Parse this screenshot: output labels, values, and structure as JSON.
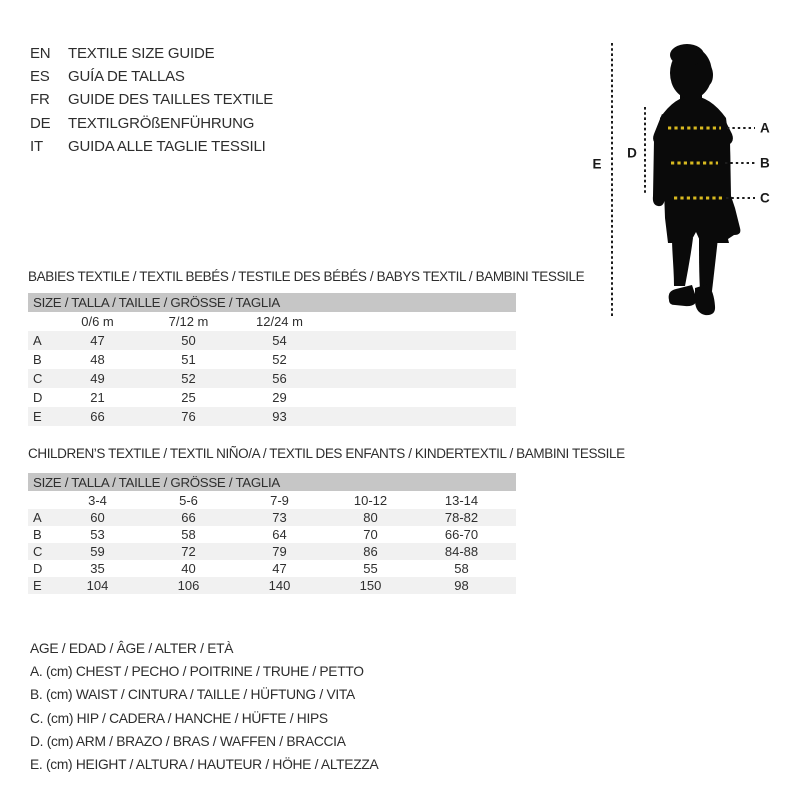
{
  "colors": {
    "accent_yellow": "#d8b920",
    "measure_line_dark": "#1c1c1c",
    "header_bar_gray": "#c6c6c6",
    "row_stripe_gray": "#f1f1f1",
    "silhouette_black": "#0a0a0a",
    "text": "#2d2d2d"
  },
  "header": {
    "languages": [
      {
        "code": "EN",
        "title": "TEXTILE SIZE GUIDE"
      },
      {
        "code": "ES",
        "title": "GUÍA DE TALLAS"
      },
      {
        "code": "FR",
        "title": "GUIDE DES TAILLES TEXTILE"
      },
      {
        "code": "DE",
        "title": "TEXTILGRÖßENFÜHRUNG"
      },
      {
        "code": "IT",
        "title": "GUIDA ALLE TAGLIE TESSILI"
      }
    ]
  },
  "figure": {
    "measure_labels": [
      "A",
      "B",
      "C",
      "D",
      "E"
    ]
  },
  "babies": {
    "title": "BABIES TEXTILE / TEXTIL BEBÉS / TESTILE DES BÉBÉS / BABYS TEXTIL / BAMBINI TESSILE",
    "table": {
      "size_header": "SIZE / TALLA / TAILLE / GRÖSSE / TAGLIA",
      "columns": [
        "0/6 m",
        "7/12 m",
        "12/24 m"
      ],
      "rows": [
        {
          "label": "A",
          "values": [
            "47",
            "50",
            "54"
          ]
        },
        {
          "label": "B",
          "values": [
            "48",
            "51",
            "52"
          ]
        },
        {
          "label": "C",
          "values": [
            "49",
            "52",
            "56"
          ]
        },
        {
          "label": "D",
          "values": [
            "21",
            "25",
            "29"
          ]
        },
        {
          "label": "E",
          "values": [
            "66",
            "76",
            "93"
          ]
        }
      ]
    }
  },
  "children": {
    "title": "CHILDREN’S TEXTILE / TEXTIL NIÑO/A / TEXTIL DES ENFANTS / KINDERTEXTIL / BAMBINI TESSILE",
    "table": {
      "size_header": "SIZE / TALLA / TAILLE / GRÖSSE / TAGLIA",
      "columns": [
        "3-4",
        "5-6",
        "7-9",
        "10-12",
        "13-14"
      ],
      "rows": [
        {
          "label": "A",
          "values": [
            "60",
            "66",
            "73",
            "80",
            "78-82"
          ]
        },
        {
          "label": "B",
          "values": [
            "53",
            "58",
            "64",
            "70",
            "66-70"
          ]
        },
        {
          "label": "C",
          "values": [
            "59",
            "72",
            "79",
            "86",
            "84-88"
          ]
        },
        {
          "label": "D",
          "values": [
            "35",
            "40",
            "47",
            "55",
            "58"
          ]
        },
        {
          "label": "E",
          "values": [
            "104",
            "106",
            "140",
            "150",
            "98"
          ]
        }
      ]
    }
  },
  "legend": {
    "lines": [
      "AGE / EDAD / ÂGE / ALTER / ETÀ",
      "A. (cm) CHEST / PECHO / POITRINE / TRUHE / PETTO",
      "B. (cm) WAIST / CINTURA / TAILLE / HÜFTUNG / VITA",
      "C. (cm) HIP / CADERA / HANCHE / HÜFTE / HIPS",
      "D. (cm) ARM / BRAZO / BRAS / WAFFEN / BRACCIA",
      "E. (cm) HEIGHT / ALTURA / HAUTEUR / HÖHE / ALTEZZA"
    ]
  }
}
